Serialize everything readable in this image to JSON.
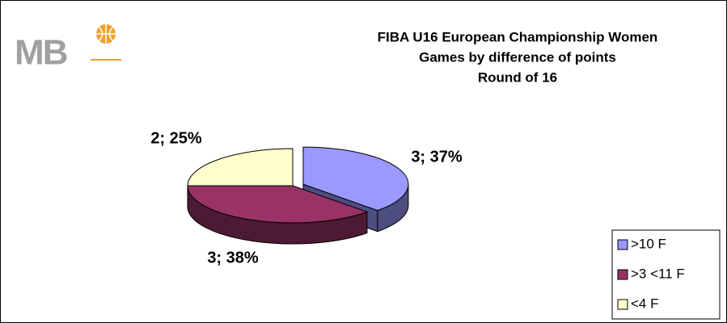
{
  "chart_data": {
    "type": "pie",
    "logo": "MB",
    "title": [
      "FIBA U16 European Championship Women",
      "Games by difference of points",
      "Round of 16"
    ],
    "categories": [
      ">10 F",
      ">3 <11 F",
      "<4 F"
    ],
    "values": [
      3,
      3,
      2
    ],
    "value_labels": [
      "3; 37%",
      "3; 38%",
      "2; 25%"
    ],
    "colors": [
      "#9999ff",
      "#993366",
      "#ffffcc"
    ],
    "explode": [
      true,
      false,
      false
    ],
    "legend": "lower right"
  }
}
